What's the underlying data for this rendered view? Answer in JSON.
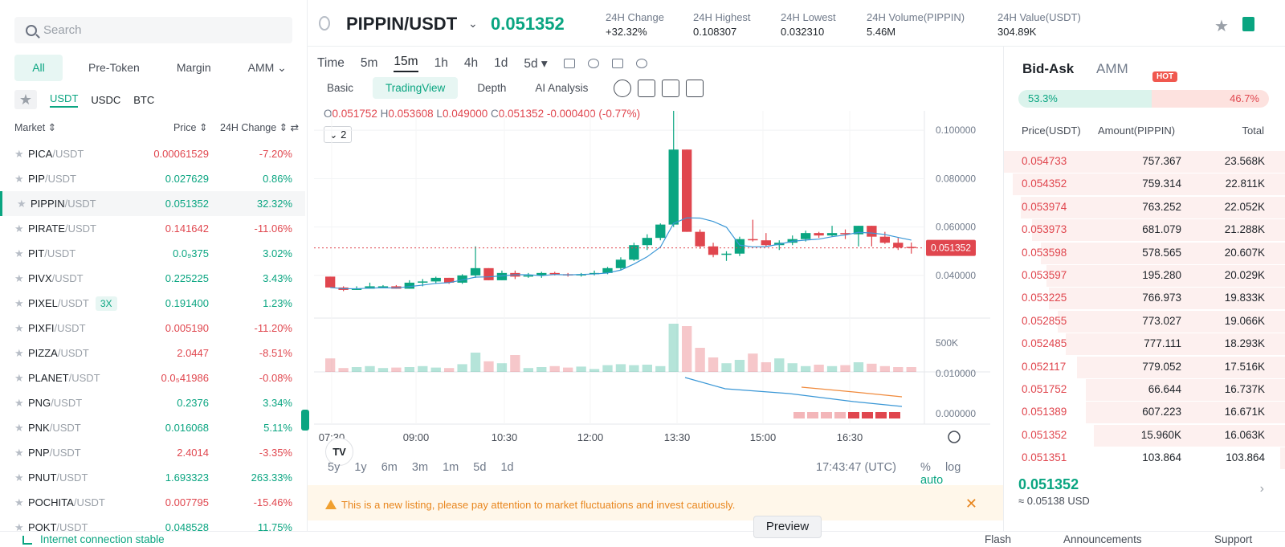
{
  "search": {
    "placeholder": "Search"
  },
  "filters": [
    "All",
    "Pre-Token",
    "Margin",
    "AMM ⌄"
  ],
  "quotes": [
    "USDT",
    "USDC",
    "BTC"
  ],
  "market_header": {
    "market": "Market ⇕",
    "price": "Price ⇕",
    "change": "24H Change ⇕ ⇄"
  },
  "markets": [
    {
      "base": "PICA",
      "quote": "/USDT",
      "price": "0.00061529",
      "change": "-7.20%",
      "pc": "dn",
      "cc": "dn"
    },
    {
      "base": "PIP",
      "quote": "/USDT",
      "price": "0.027629",
      "change": "0.86%",
      "pc": "up",
      "cc": "up"
    },
    {
      "base": "PIPPIN",
      "quote": "/USDT",
      "price": "0.051352",
      "change": "32.32%",
      "pc": "up",
      "cc": "up",
      "sel": true
    },
    {
      "base": "PIRATE",
      "quote": "/USDT",
      "price": "0.141642",
      "change": "-11.06%",
      "pc": "dn",
      "cc": "dn"
    },
    {
      "base": "PIT",
      "quote": "/USDT",
      "price": "0.0₉375",
      "change": "3.02%",
      "pc": "up",
      "cc": "up"
    },
    {
      "base": "PIVX",
      "quote": "/USDT",
      "price": "0.225225",
      "change": "3.43%",
      "pc": "up",
      "cc": "up"
    },
    {
      "base": "PIXEL",
      "quote": "/USDT",
      "lev": "3X",
      "price": "0.191400",
      "change": "1.23%",
      "pc": "up",
      "cc": "up"
    },
    {
      "base": "PIXFI",
      "quote": "/USDT",
      "price": "0.005190",
      "change": "-11.20%",
      "pc": "dn",
      "cc": "dn"
    },
    {
      "base": "PIZZA",
      "quote": "/USDT",
      "price": "2.0447",
      "change": "-8.51%",
      "pc": "dn",
      "cc": "dn"
    },
    {
      "base": "PLANET",
      "quote": "/USDT",
      "price": "0.0₅41986",
      "change": "-0.08%",
      "pc": "dn",
      "cc": "dn"
    },
    {
      "base": "PNG",
      "quote": "/USDT",
      "price": "0.2376",
      "change": "3.34%",
      "pc": "up",
      "cc": "up"
    },
    {
      "base": "PNK",
      "quote": "/USDT",
      "price": "0.016068",
      "change": "5.11%",
      "pc": "up",
      "cc": "up"
    },
    {
      "base": "PNP",
      "quote": "/USDT",
      "price": "2.4014",
      "change": "-3.35%",
      "pc": "dn",
      "cc": "dn"
    },
    {
      "base": "PNUT",
      "quote": "/USDT",
      "price": "1.693323",
      "change": "263.33%",
      "pc": "up",
      "cc": "up"
    },
    {
      "base": "POCHITA",
      "quote": "/USDT",
      "price": "0.007795",
      "change": "-15.46%",
      "pc": "dn",
      "cc": "dn"
    },
    {
      "base": "POKT",
      "quote": "/USDT",
      "price": "0.048528",
      "change": "11.75%",
      "pc": "up",
      "cc": "up"
    }
  ],
  "header": {
    "pair": "PIPPIN/USDT",
    "last_price": "0.051352",
    "stats": [
      {
        "label": "24H Change",
        "value": "+32.32%",
        "cls": "up"
      },
      {
        "label": "24H Highest",
        "value": "0.108307",
        "cls": ""
      },
      {
        "label": "24H Lowest",
        "value": "0.032310",
        "cls": ""
      },
      {
        "label": "24H Volume(PIPPIN)",
        "value": "5.46M",
        "cls": ""
      },
      {
        "label": "24H Value(USDT)",
        "value": "304.89K",
        "cls": ""
      }
    ]
  },
  "intervals": [
    "Time",
    "5m",
    "15m",
    "1h",
    "4h",
    "1d",
    "5d ▾"
  ],
  "active_interval": "15m",
  "views": [
    "Basic",
    "TradingView",
    "Depth",
    "AI Analysis"
  ],
  "ohlc": {
    "o": "0.051752",
    "h": "0.053608",
    "l": "0.049000",
    "c": "0.051352",
    "chg": "-0.000400 (-0.77%)"
  },
  "indicator_count": "2",
  "ranges": [
    "5y",
    "1y",
    "6m",
    "3m",
    "1m",
    "5d",
    "1d"
  ],
  "clock": "17:43:47 (UTC)",
  "scale": {
    "pct": "%",
    "log": "log",
    "auto": "auto"
  },
  "warning": "This is a new listing, please pay attention to market fluctuations and invest cautiously.",
  "colors": {
    "up": "#0aa581",
    "down": "#e0464e",
    "ma1": "#3a97d6",
    "ma2": "#f08a3c"
  },
  "chart_data": {
    "type": "candlestick",
    "time_ticks": [
      "07:30",
      "09:00",
      "10:30",
      "12:00",
      "13:30",
      "15:00",
      "16:30"
    ],
    "price_ticks": [
      "0.100000",
      "0.080000",
      "0.060000",
      "0.040000"
    ],
    "volume_ticks": [
      "500K"
    ],
    "osc_ticks": [
      "0.010000",
      "0.000000"
    ],
    "last_price_label": "0.051352",
    "ylim": [
      0.03,
      0.108
    ],
    "candles": [
      [
        0.0395,
        0.0395,
        0.035,
        0.035
      ],
      [
        0.035,
        0.0355,
        0.0335,
        0.034
      ],
      [
        0.034,
        0.0355,
        0.034,
        0.0345
      ],
      [
        0.0345,
        0.037,
        0.0345,
        0.0355
      ],
      [
        0.0355,
        0.036,
        0.035,
        0.0355
      ],
      [
        0.0355,
        0.036,
        0.0345,
        0.0345
      ],
      [
        0.0345,
        0.038,
        0.0345,
        0.037
      ],
      [
        0.037,
        0.0385,
        0.0355,
        0.0375
      ],
      [
        0.0375,
        0.0395,
        0.0365,
        0.039
      ],
      [
        0.039,
        0.039,
        0.0365,
        0.037
      ],
      [
        0.037,
        0.0405,
        0.0365,
        0.04
      ],
      [
        0.04,
        0.052,
        0.039,
        0.043
      ],
      [
        0.043,
        0.043,
        0.038,
        0.038
      ],
      [
        0.038,
        0.042,
        0.038,
        0.041
      ],
      [
        0.041,
        0.042,
        0.0385,
        0.0395
      ],
      [
        0.0395,
        0.041,
        0.039,
        0.04
      ],
      [
        0.04,
        0.0415,
        0.039,
        0.041
      ],
      [
        0.041,
        0.0415,
        0.04,
        0.0405
      ],
      [
        0.0405,
        0.041,
        0.0395,
        0.04
      ],
      [
        0.04,
        0.041,
        0.0395,
        0.0405
      ],
      [
        0.0405,
        0.042,
        0.04,
        0.041
      ],
      [
        0.041,
        0.0435,
        0.0405,
        0.043
      ],
      [
        0.043,
        0.0475,
        0.042,
        0.0465
      ],
      [
        0.0465,
        0.0535,
        0.046,
        0.0525
      ],
      [
        0.0525,
        0.057,
        0.0505,
        0.0555
      ],
      [
        0.0555,
        0.0615,
        0.0545,
        0.061
      ],
      [
        0.061,
        0.108,
        0.06,
        0.092
      ],
      [
        0.092,
        0.092,
        0.058,
        0.058
      ],
      [
        0.058,
        0.059,
        0.051,
        0.052
      ],
      [
        0.052,
        0.0535,
        0.0475,
        0.0485
      ],
      [
        0.0485,
        0.05,
        0.046,
        0.049
      ],
      [
        0.049,
        0.056,
        0.048,
        0.055
      ],
      [
        0.055,
        0.063,
        0.054,
        0.0545
      ],
      [
        0.0545,
        0.0575,
        0.052,
        0.0525
      ],
      [
        0.0525,
        0.0545,
        0.0505,
        0.0535
      ],
      [
        0.0535,
        0.0565,
        0.0525,
        0.055
      ],
      [
        0.055,
        0.0585,
        0.054,
        0.0575
      ],
      [
        0.0575,
        0.058,
        0.0555,
        0.0565
      ],
      [
        0.0565,
        0.0605,
        0.056,
        0.0575
      ],
      [
        0.0575,
        0.059,
        0.055,
        0.057
      ],
      [
        0.057,
        0.0605,
        0.052,
        0.0605
      ],
      [
        0.0605,
        0.0605,
        0.052,
        0.056
      ],
      [
        0.056,
        0.058,
        0.053,
        0.0535
      ],
      [
        0.0535,
        0.0555,
        0.0505,
        0.0515
      ],
      [
        0.0518,
        0.0536,
        0.049,
        0.0514
      ]
    ],
    "volumes": [
      0.28,
      0.08,
      0.1,
      0.12,
      0.08,
      0.09,
      0.1,
      0.12,
      0.09,
      0.08,
      0.16,
      0.4,
      0.22,
      0.18,
      0.35,
      0.08,
      0.1,
      0.12,
      0.09,
      0.11,
      0.06,
      0.14,
      0.16,
      0.14,
      0.15,
      0.12,
      1.0,
      0.95,
      0.5,
      0.3,
      0.18,
      0.25,
      0.38,
      0.2,
      0.28,
      0.18,
      0.12,
      0.15,
      0.12,
      0.14,
      0.2,
      0.17,
      0.12,
      0.1,
      0.1
    ]
  },
  "orderbook": {
    "tabs": {
      "bid_ask": "Bid-Ask",
      "amm": "AMM",
      "hot": "HOT"
    },
    "ratio": {
      "bid": "53.3%",
      "ask": "46.7%",
      "bid_frac": 0.533
    },
    "headers": {
      "price": "Price(USDT)",
      "amount": "Amount(PIPPIN)",
      "total": "Total"
    },
    "asks": [
      {
        "p": "0.054733",
        "a": "757.367",
        "t": "23.568K",
        "d": 1.0
      },
      {
        "p": "0.054352",
        "a": "759.314",
        "t": "22.811K",
        "d": 0.97
      },
      {
        "p": "0.053974",
        "a": "763.252",
        "t": "22.052K",
        "d": 0.94
      },
      {
        "p": "0.053973",
        "a": "681.079",
        "t": "21.288K",
        "d": 0.9
      },
      {
        "p": "0.053598",
        "a": "578.565",
        "t": "20.607K",
        "d": 0.87
      },
      {
        "p": "0.053597",
        "a": "195.280",
        "t": "20.029K",
        "d": 0.85
      },
      {
        "p": "0.053225",
        "a": "766.973",
        "t": "19.833K",
        "d": 0.84
      },
      {
        "p": "0.052855",
        "a": "773.027",
        "t": "19.066K",
        "d": 0.81
      },
      {
        "p": "0.052485",
        "a": "777.111",
        "t": "18.293K",
        "d": 0.78
      },
      {
        "p": "0.052117",
        "a": "779.052",
        "t": "17.516K",
        "d": 0.74
      },
      {
        "p": "0.051752",
        "a": "66.644",
        "t": "16.737K",
        "d": 0.71
      },
      {
        "p": "0.051389",
        "a": "607.223",
        "t": "16.671K",
        "d": 0.71
      },
      {
        "p": "0.051352",
        "a": "15.960K",
        "t": "16.063K",
        "d": 0.68
      },
      {
        "p": "0.051351",
        "a": "103.864",
        "t": "103.864",
        "d": 0.02
      }
    ],
    "last": "0.051352",
    "approx": "≈ 0.05138 USD"
  },
  "status": {
    "connection": "Internet connection stable",
    "flash": "Flash",
    "announcements": "Announcements",
    "support": "Support",
    "preview": "Preview"
  }
}
